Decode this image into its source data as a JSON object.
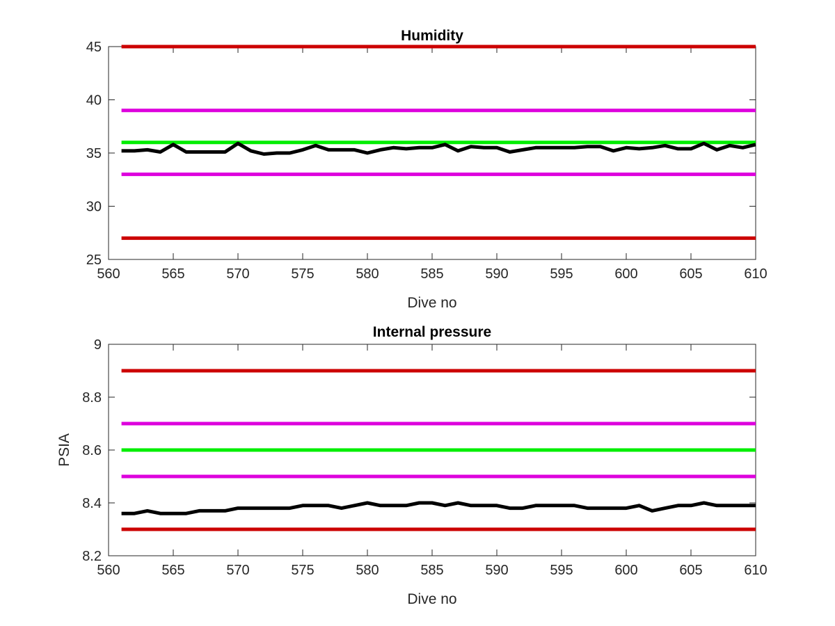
{
  "chart_data": [
    {
      "type": "line",
      "title": "Humidity",
      "xlabel": "Dive no",
      "ylabel": "",
      "xlim": [
        560,
        610
      ],
      "ylim": [
        25,
        45
      ],
      "xticks": [
        "560",
        "565",
        "570",
        "575",
        "580",
        "585",
        "590",
        "595",
        "600",
        "605",
        "610"
      ],
      "yticks": [
        "25",
        "30",
        "35",
        "40",
        "45"
      ],
      "grid": false,
      "series": [
        {
          "role": "measurement",
          "color": "#000000",
          "x": [
            561,
            562,
            563,
            564,
            565,
            566,
            567,
            568,
            569,
            570,
            571,
            572,
            573,
            574,
            575,
            576,
            577,
            578,
            579,
            580,
            581,
            582,
            583,
            584,
            585,
            586,
            587,
            588,
            589,
            590,
            591,
            592,
            593,
            594,
            595,
            596,
            597,
            598,
            599,
            600,
            601,
            602,
            603,
            604,
            605,
            606,
            607,
            608,
            609,
            610
          ],
          "values": [
            35.2,
            35.2,
            35.3,
            35.1,
            35.8,
            35.1,
            35.1,
            35.1,
            35.1,
            35.9,
            35.2,
            34.9,
            35.0,
            35.0,
            35.3,
            35.7,
            35.3,
            35.3,
            35.3,
            35.0,
            35.3,
            35.5,
            35.4,
            35.5,
            35.5,
            35.8,
            35.2,
            35.6,
            35.5,
            35.5,
            35.1,
            35.3,
            35.5,
            35.5,
            35.5,
            35.5,
            35.6,
            35.6,
            35.2,
            35.5,
            35.4,
            35.5,
            35.7,
            35.4,
            35.4,
            35.9,
            35.3,
            35.7,
            35.5,
            35.8
          ]
        },
        {
          "role": "limit",
          "color": "#cc0000",
          "x": [
            561,
            610
          ],
          "values": [
            45,
            45
          ]
        },
        {
          "role": "limit",
          "color": "#dd00dd",
          "x": [
            561,
            610
          ],
          "values": [
            39,
            39
          ]
        },
        {
          "role": "limit",
          "color": "#00ee00",
          "x": [
            561,
            610
          ],
          "values": [
            36,
            36
          ]
        },
        {
          "role": "limit",
          "color": "#dd00dd",
          "x": [
            561,
            610
          ],
          "values": [
            33,
            33
          ]
        },
        {
          "role": "limit",
          "color": "#cc0000",
          "x": [
            561,
            610
          ],
          "values": [
            27,
            27
          ]
        }
      ]
    },
    {
      "type": "line",
      "title": "Internal pressure",
      "xlabel": "Dive no",
      "ylabel": "PSIA",
      "xlim": [
        560,
        610
      ],
      "ylim": [
        8.2,
        9.0
      ],
      "xticks": [
        "560",
        "565",
        "570",
        "575",
        "580",
        "585",
        "590",
        "595",
        "600",
        "605",
        "610"
      ],
      "yticks": [
        "8.2",
        "8.4",
        "8.6",
        "8.8",
        "9"
      ],
      "grid": false,
      "series": [
        {
          "role": "measurement",
          "color": "#000000",
          "x": [
            561,
            562,
            563,
            564,
            565,
            566,
            567,
            568,
            569,
            570,
            571,
            572,
            573,
            574,
            575,
            576,
            577,
            578,
            579,
            580,
            581,
            582,
            583,
            584,
            585,
            586,
            587,
            588,
            589,
            590,
            591,
            592,
            593,
            594,
            595,
            596,
            597,
            598,
            599,
            600,
            601,
            602,
            603,
            604,
            605,
            606,
            607,
            608,
            609,
            610
          ],
          "values": [
            8.36,
            8.36,
            8.37,
            8.36,
            8.36,
            8.36,
            8.37,
            8.37,
            8.37,
            8.38,
            8.38,
            8.38,
            8.38,
            8.38,
            8.39,
            8.39,
            8.39,
            8.38,
            8.39,
            8.4,
            8.39,
            8.39,
            8.39,
            8.4,
            8.4,
            8.39,
            8.4,
            8.39,
            8.39,
            8.39,
            8.38,
            8.38,
            8.39,
            8.39,
            8.39,
            8.39,
            8.38,
            8.38,
            8.38,
            8.38,
            8.39,
            8.37,
            8.38,
            8.39,
            8.39,
            8.4,
            8.39,
            8.39,
            8.39,
            8.39
          ]
        },
        {
          "role": "limit",
          "color": "#cc0000",
          "x": [
            561,
            610
          ],
          "values": [
            8.9,
            8.9
          ]
        },
        {
          "role": "limit",
          "color": "#dd00dd",
          "x": [
            561,
            610
          ],
          "values": [
            8.7,
            8.7
          ]
        },
        {
          "role": "limit",
          "color": "#00ee00",
          "x": [
            561,
            610
          ],
          "values": [
            8.6,
            8.6
          ]
        },
        {
          "role": "limit",
          "color": "#dd00dd",
          "x": [
            561,
            610
          ],
          "values": [
            8.5,
            8.5
          ]
        },
        {
          "role": "limit",
          "color": "#cc0000",
          "x": [
            561,
            610
          ],
          "values": [
            8.3,
            8.3
          ]
        }
      ]
    }
  ]
}
